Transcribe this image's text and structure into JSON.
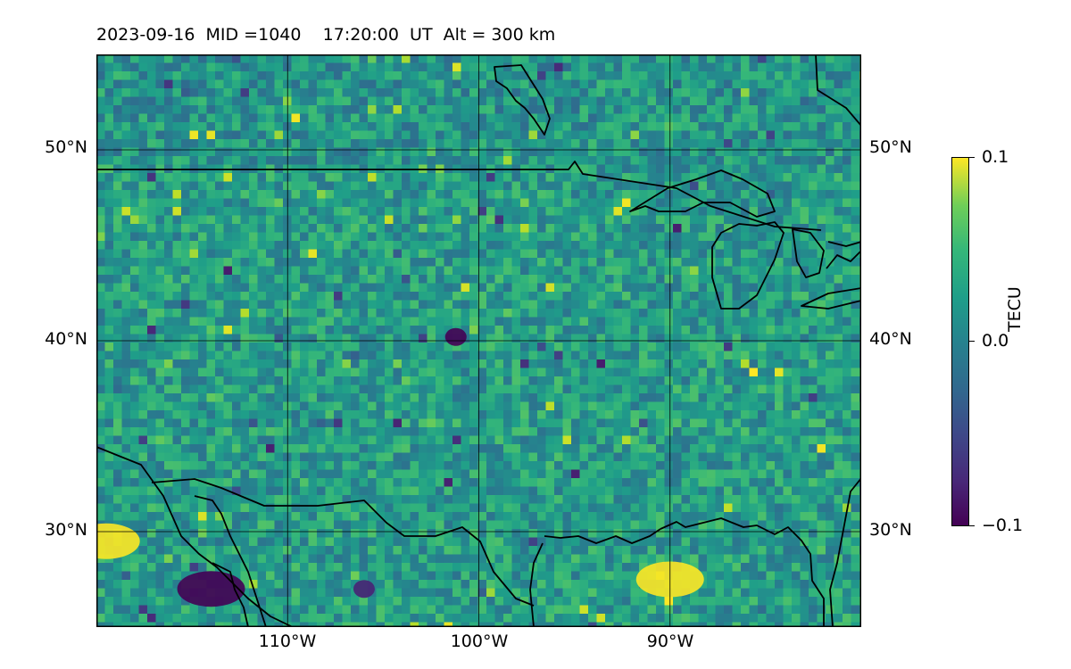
{
  "header": {
    "date": "2023-09-16",
    "mid": "MID =1040",
    "time": "17:20:00  UT",
    "alt": "Alt = 300 km"
  },
  "axes": {
    "lat_labels": [
      "50°N",
      "40°N",
      "30°N"
    ],
    "lon_labels": [
      "110°W",
      "100°W",
      "90°W"
    ],
    "lat_values": [
      50,
      40,
      30
    ],
    "lon_values": [
      -110,
      -100,
      -90
    ],
    "extent": {
      "lon_min": -120,
      "lon_max": -80,
      "lat_min": 25,
      "lat_max": 55
    }
  },
  "colorbar": {
    "title": "TECU",
    "ticks": [
      "0.1",
      "0.0",
      "−0.1"
    ],
    "vmin": -0.1,
    "vmax": 0.1,
    "colormap": "viridis"
  },
  "chart_data": {
    "type": "heatmap",
    "variable": "TECU",
    "range": [
      -0.1,
      0.1
    ],
    "notable_features": [
      {
        "lat": 27.5,
        "lon": -90,
        "value": 0.1
      },
      {
        "lat": 29.5,
        "lon": -119.5,
        "value": 0.1
      },
      {
        "lat": 27,
        "lon": -114,
        "value": -0.1
      },
      {
        "lat": 27,
        "lon": -106,
        "value": -0.08
      },
      {
        "lat": 40.2,
        "lon": -101.2,
        "value": -0.1
      }
    ]
  }
}
